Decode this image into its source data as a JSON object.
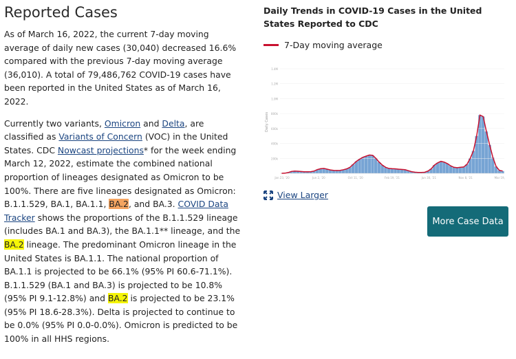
{
  "left": {
    "title": "Reported Cases",
    "p1": "As of March 16, 2022, the current 7-day moving average of daily new cases (30,040) decreased 16.6% compared with the previous 7-day moving average (36,010). A total of 79,486,762 COVID-19 cases have been reported in the United States as of March 16, 2022.",
    "p2": {
      "t1": "Currently two variants, ",
      "link_omicron": "Omicron",
      "t2": " and ",
      "link_delta": "Delta",
      "t3": ", are classified as ",
      "link_voc": "Variants of Concern",
      "t4": " (VOC) in the United States. CDC ",
      "link_nowcast": "Nowcast projections",
      "t5": "* for the week ending March 12, 2022, estimate the combined national proportion of lineages designated as Omicron to be 100%. There are five lineages designated as Omicron: B.1.1.529, BA.1, BA.1.1, ",
      "hl_ba2_1": "BA.2",
      "t6": ", and BA.3. ",
      "link_tracker": "COVID Data Tracker",
      "t7": " shows the proportions of the B.1.1.529 lineage (includes BA.1 and BA.3), the BA.1.1** lineage, and the ",
      "hl_ba2_2": "BA.2",
      "t8": " lineage. The predominant Omicron lineage in the United States is BA.1.1. The national proportion of BA.1.1 is projected to be 66.1% (95% PI 60.6-71.1%). B.1.1.529 (BA.1 and BA.3) is projected to be 10.8% (95% PI 9.1-12.8%) and ",
      "hl_ba2_3": "BA.2",
      "t9": " is projected to be 23.1% (95% PI 18.6-28.3%). Delta is projected to continue to be 0.0% (95% PI 0.0-0.0%). Omicron is predicted to be 100% in all HHS regions."
    }
  },
  "right": {
    "chart_title": "Daily Trends in COVID-19 Cases in the United States Reported to CDC",
    "legend_label": "7-Day moving average",
    "view_larger": "View Larger",
    "button_label": "More Case Data",
    "expand_icon": "expand-arrows-icon",
    "colors": {
      "line": "#c8102e",
      "bars": "#4a86c5",
      "button": "#146b78"
    }
  },
  "chart_data": {
    "type": "bar",
    "title": "",
    "xlabel": "",
    "ylabel": "Daily Cases",
    "ylim": [
      0,
      1400000
    ],
    "y_ticks": [
      "200k",
      "400k",
      "600k",
      "800k",
      "1.0M",
      "1.2M",
      "1.4M"
    ],
    "x_ticks": [
      "Jan 23, '20",
      "Jun 2, '20",
      "Oct 11, '20",
      "Feb 19, '21",
      "Jun 30, '21",
      "Nov 8, '21",
      "Mar 19, '22"
    ],
    "series": [
      {
        "name": "7-Day moving average",
        "values": [
          0,
          2000,
          10000,
          25000,
          30000,
          28000,
          24000,
          21000,
          20000,
          22000,
          30000,
          50000,
          62000,
          65000,
          55000,
          45000,
          40000,
          38000,
          40000,
          48000,
          60000,
          80000,
          120000,
          160000,
          190000,
          215000,
          230000,
          245000,
          240000,
          200000,
          150000,
          110000,
          80000,
          65000,
          62000,
          60000,
          55000,
          52000,
          48000,
          35000,
          22000,
          15000,
          12000,
          12000,
          14000,
          30000,
          60000,
          110000,
          140000,
          160000,
          150000,
          130000,
          100000,
          80000,
          75000,
          80000,
          85000,
          120000,
          200000,
          300000,
          500000,
          780000,
          760000,
          560000,
          380000,
          210000,
          90000,
          40000,
          30000
        ]
      }
    ]
  }
}
